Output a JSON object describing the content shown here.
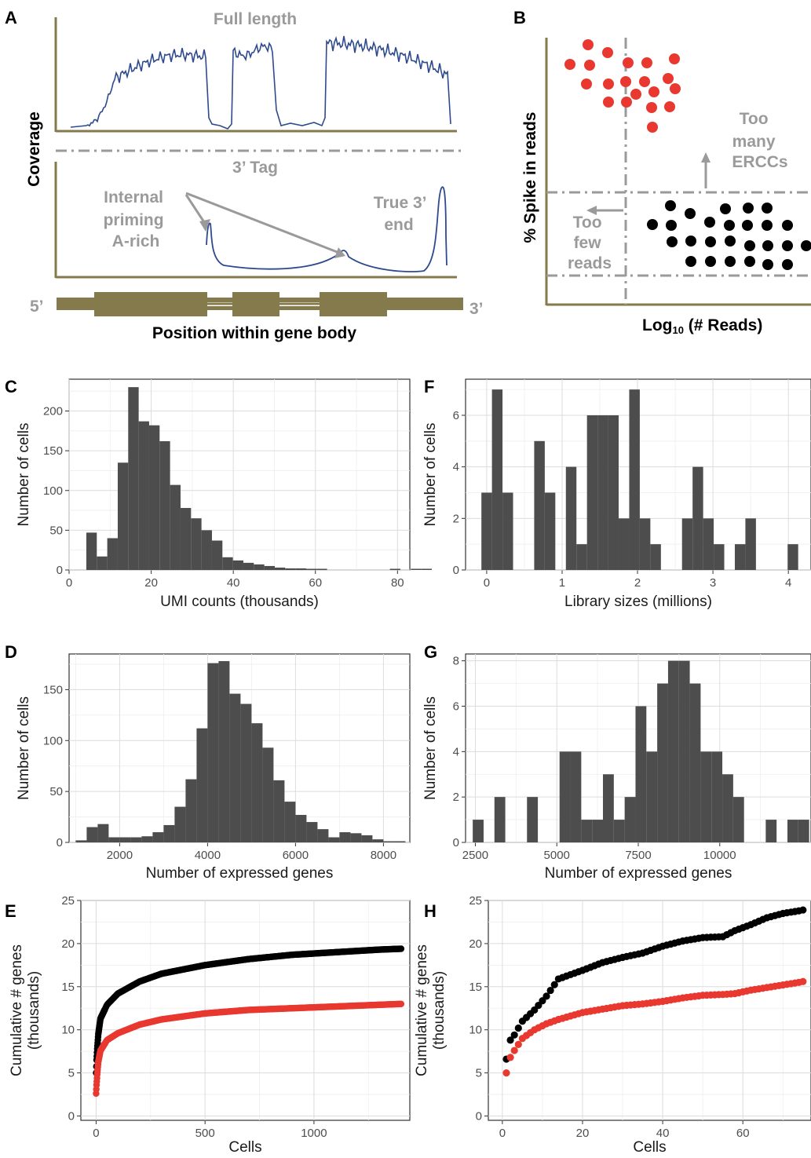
{
  "colors": {
    "olive": "#857a4b",
    "curve_blue": "#2e4a8f",
    "bar_grey": "#4d4d4d",
    "spike_red": "#e8382f",
    "genes_black": "#000000",
    "annot_grey": "#9a9a9a"
  },
  "panelA": {
    "label": "A",
    "full_length": "Full length",
    "tag": "3’ Tag",
    "internal": [
      "Internal",
      "priming",
      "A-rich"
    ],
    "true3": [
      "True 3’",
      "end"
    ],
    "ylabel": "Coverage",
    "five": "5’",
    "three": "3’",
    "xlabel": "Position within gene body"
  },
  "panelB": {
    "label": "B",
    "ylabel": "% Spike in reads",
    "xlabel_main": "Log",
    "xlabel_sub": "10",
    "xlabel_rest": " (# Reads)",
    "too_many": [
      "Too",
      "many",
      "ERCCs"
    ],
    "too_few": [
      "Too",
      "few",
      "reads"
    ]
  },
  "chart_data": [
    {
      "panel": "C",
      "type": "bar",
      "xlabel": "UMI counts (thousands)",
      "ylabel": "Number of cells",
      "xlim": [
        0,
        83
      ],
      "ylim": [
        0,
        240
      ],
      "xticks": [
        0,
        20,
        40,
        60,
        80
      ],
      "yticks": [
        0,
        50,
        100,
        150,
        200
      ],
      "binwidth": 2.55,
      "bin_start": 4.2,
      "values": [
        47,
        17,
        40,
        135,
        230,
        187,
        182,
        162,
        107,
        78,
        65,
        50,
        37,
        16,
        12,
        9,
        7,
        5,
        3,
        2,
        2,
        1,
        1,
        0,
        0,
        0,
        0,
        0,
        0,
        1,
        0,
        1,
        1
      ]
    },
    {
      "panel": "F",
      "type": "bar",
      "xlabel": "Library sizes (millions)",
      "ylabel": "Number of cells",
      "xlim": [
        -0.28,
        4.3
      ],
      "ylim": [
        0,
        7.4
      ],
      "xticks": [
        0,
        1,
        2,
        3,
        4
      ],
      "yticks": [
        0,
        2,
        4,
        6
      ],
      "binwidth": 0.14,
      "bin_start": -0.07,
      "values": [
        3,
        7,
        3,
        0,
        0,
        5,
        3,
        0,
        4,
        1,
        6,
        6,
        6,
        2,
        7,
        2,
        1,
        0,
        0,
        2,
        4,
        2,
        1,
        0,
        1,
        2,
        0,
        0,
        0,
        1
      ]
    },
    {
      "panel": "D",
      "type": "bar",
      "xlabel": "Number of expressed genes",
      "ylabel": "Number of cells",
      "xlim": [
        850,
        8600
      ],
      "ylim": [
        0,
        185
      ],
      "xticks": [
        2000,
        4000,
        6000,
        8000
      ],
      "yticks": [
        0,
        50,
        100,
        150
      ],
      "binwidth": 250,
      "bin_start": 1000,
      "values": [
        2,
        15,
        18,
        5,
        5,
        5,
        6,
        10,
        17,
        35,
        62,
        112,
        176,
        178,
        146,
        136,
        117,
        93,
        61,
        40,
        27,
        20,
        13,
        5,
        10,
        9,
        7,
        3,
        1,
        1
      ]
    },
    {
      "panel": "G",
      "type": "bar",
      "xlabel": "Number of expressed genes",
      "ylabel": "Number of cells",
      "xlim": [
        2200,
        12800
      ],
      "ylim": [
        0,
        8.3
      ],
      "xticks": [
        2500,
        5000,
        7500,
        10000
      ],
      "yticks": [
        0,
        2,
        4,
        6,
        8
      ],
      "binwidth": 333,
      "bin_start": 2420,
      "values": [
        1,
        0,
        2,
        0,
        0,
        2,
        0,
        0,
        4,
        4,
        1,
        1,
        3,
        1,
        2,
        6,
        4,
        7,
        8,
        8,
        7,
        4,
        4,
        3,
        2,
        0,
        0,
        1,
        0,
        1,
        1
      ]
    },
    {
      "panel": "E",
      "type": "scatter",
      "xlabel": "Cells",
      "ylabel": "Cumulative # genes\n(thousands)",
      "xlim": [
        -70,
        1440
      ],
      "ylim": [
        -0.5,
        25
      ],
      "xticks": [
        0,
        500,
        1000
      ],
      "yticks": [
        0,
        5,
        10,
        15,
        20,
        25
      ],
      "series": [
        {
          "color": "#000000",
          "n": 1400,
          "x": [
            0,
            2,
            5,
            10,
            20,
            50,
            100,
            200,
            300,
            500,
            700,
            900,
            1100,
            1300,
            1400
          ],
          "y": [
            5.0,
            6.5,
            7.8,
            9.5,
            11.3,
            12.9,
            14.2,
            15.6,
            16.5,
            17.5,
            18.2,
            18.7,
            19.0,
            19.3,
            19.4
          ]
        },
        {
          "color": "#e8382f",
          "n": 1400,
          "x": [
            0,
            2,
            5,
            10,
            20,
            50,
            100,
            200,
            300,
            500,
            700,
            900,
            1100,
            1300,
            1400
          ],
          "y": [
            2.6,
            3.6,
            4.8,
            6.3,
            7.6,
            8.8,
            9.6,
            10.6,
            11.2,
            11.9,
            12.3,
            12.5,
            12.7,
            12.9,
            13.0
          ]
        }
      ]
    },
    {
      "panel": "H",
      "type": "scatter",
      "xlabel": "Cells",
      "ylabel": "Cumulative # genes\n(thousands)",
      "xlim": [
        -3.5,
        77
      ],
      "ylim": [
        -0.5,
        25
      ],
      "xticks": [
        0,
        20,
        40,
        60
      ],
      "yticks": [
        0,
        5,
        10,
        15,
        20,
        25
      ],
      "series": [
        {
          "color": "#000000",
          "n": 75,
          "x": [
            1,
            2,
            3,
            5,
            8,
            11,
            14,
            20,
            25,
            30,
            35,
            40,
            45,
            50,
            55,
            58,
            62,
            66,
            70,
            74,
            75
          ],
          "y": [
            6.6,
            8.8,
            9.4,
            11.0,
            12.3,
            13.9,
            15.9,
            16.9,
            17.8,
            18.4,
            18.9,
            19.7,
            20.3,
            20.7,
            20.8,
            21.5,
            22.2,
            23.0,
            23.5,
            23.8,
            23.9
          ]
        },
        {
          "color": "#e8382f",
          "n": 75,
          "x": [
            1,
            2,
            3,
            5,
            8,
            11,
            14,
            20,
            25,
            30,
            35,
            40,
            45,
            50,
            55,
            58,
            62,
            66,
            70,
            74,
            75
          ],
          "y": [
            5.0,
            6.8,
            7.6,
            9.0,
            10.0,
            10.7,
            11.2,
            12.0,
            12.4,
            12.8,
            13.0,
            13.3,
            13.7,
            14.0,
            14.1,
            14.2,
            14.6,
            14.9,
            15.2,
            15.5,
            15.6
          ]
        }
      ]
    }
  ],
  "panel_labels": [
    "C",
    "F",
    "D",
    "G",
    "E",
    "H"
  ]
}
